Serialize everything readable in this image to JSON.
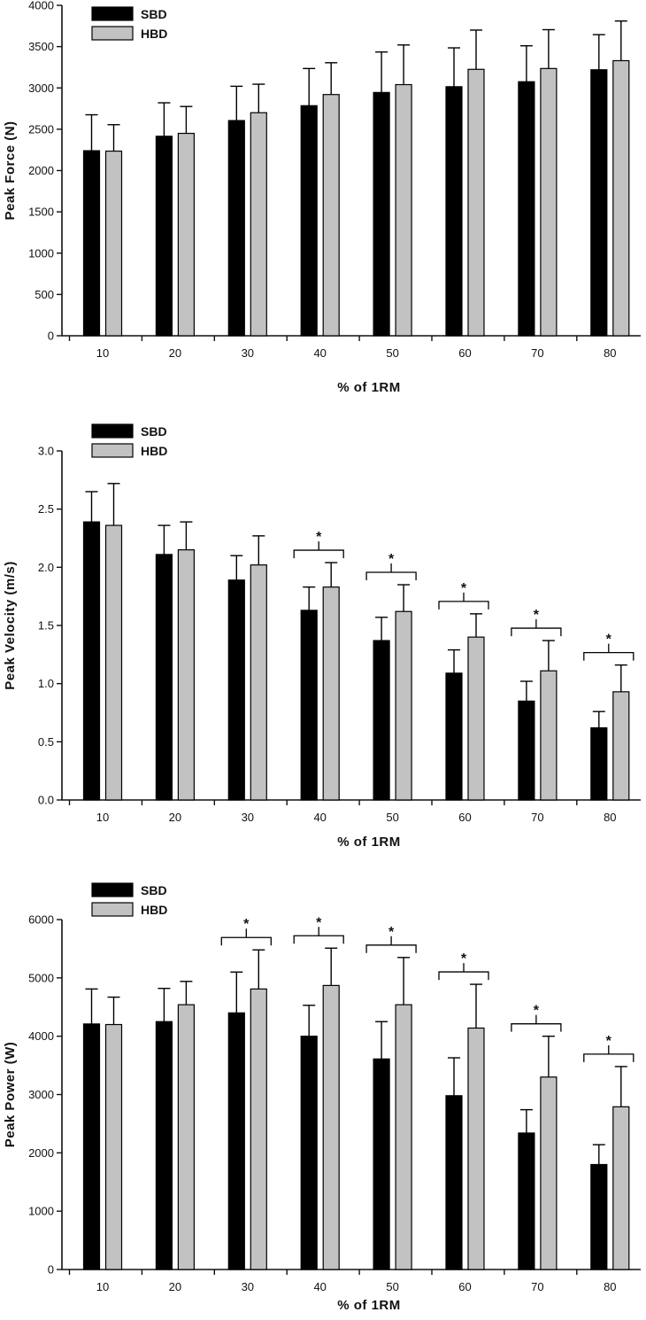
{
  "colors": {
    "SBD": "#000000",
    "HBD": "#c2c2c2",
    "axis": "#111111"
  },
  "chart_data": [
    {
      "type": "bar",
      "categories": [
        "10",
        "20",
        "30",
        "40",
        "50",
        "60",
        "70",
        "80"
      ],
      "series": [
        {
          "name": "SBD",
          "values": [
            2240,
            2415,
            2605,
            2785,
            2945,
            3015,
            3075,
            3220
          ],
          "errors": [
            435,
            405,
            415,
            450,
            490,
            470,
            435,
            425
          ]
        },
        {
          "name": "HBD",
          "values": [
            2235,
            2450,
            2700,
            2920,
            3040,
            3225,
            3235,
            3330
          ],
          "errors": [
            320,
            325,
            345,
            385,
            480,
            475,
            470,
            480
          ]
        }
      ],
      "significant": [],
      "title": "",
      "xlabel": "% of 1RM",
      "ylabel": "Peak Force (N)",
      "ylim": [
        0,
        4000
      ],
      "yticks": [
        "0",
        "500",
        "1000",
        "1500",
        "2000",
        "2500",
        "3000",
        "3500",
        "4000"
      ],
      "legend": "top-left"
    },
    {
      "type": "bar",
      "categories": [
        "10",
        "20",
        "30",
        "40",
        "50",
        "60",
        "70",
        "80"
      ],
      "series": [
        {
          "name": "SBD",
          "values": [
            2.39,
            2.11,
            1.89,
            1.63,
            1.37,
            1.09,
            0.85,
            0.62
          ],
          "errors": [
            0.26,
            0.25,
            0.21,
            0.2,
            0.2,
            0.2,
            0.17,
            0.14
          ]
        },
        {
          "name": "HBD",
          "values": [
            2.36,
            2.15,
            2.02,
            1.83,
            1.62,
            1.4,
            1.11,
            0.93
          ],
          "errors": [
            0.36,
            0.24,
            0.25,
            0.21,
            0.23,
            0.2,
            0.26,
            0.23
          ]
        }
      ],
      "significant": [
        false,
        false,
        false,
        true,
        true,
        true,
        true,
        true
      ],
      "significance_marker": "*",
      "title": "",
      "xlabel": "% of 1RM",
      "ylabel": "Peak Velocity (m/s)",
      "ylim": [
        0,
        3.0
      ],
      "yticks": [
        "0.0",
        "0.5",
        "1.0",
        "1.5",
        "2.0",
        "2.5",
        "3.0"
      ],
      "legend": "top-left"
    },
    {
      "type": "bar",
      "categories": [
        "10",
        "20",
        "30",
        "40",
        "50",
        "60",
        "70",
        "80"
      ],
      "series": [
        {
          "name": "SBD",
          "values": [
            4210,
            4250,
            4400,
            4000,
            3610,
            2980,
            2340,
            1800
          ],
          "errors": [
            600,
            570,
            700,
            530,
            640,
            650,
            400,
            340
          ]
        },
        {
          "name": "HBD",
          "values": [
            4200,
            4540,
            4810,
            4870,
            4540,
            4140,
            3300,
            2790
          ],
          "errors": [
            470,
            400,
            670,
            640,
            810,
            750,
            700,
            690
          ]
        }
      ],
      "significant": [
        false,
        false,
        true,
        true,
        true,
        true,
        true,
        true
      ],
      "significance_marker": "*",
      "title": "",
      "xlabel": "% of 1RM",
      "ylabel": "Peak Power (W)",
      "ylim": [
        0,
        6000
      ],
      "yticks": [
        "0",
        "1000",
        "2000",
        "3000",
        "4000",
        "5000",
        "6000"
      ],
      "legend": "top-left"
    }
  ]
}
